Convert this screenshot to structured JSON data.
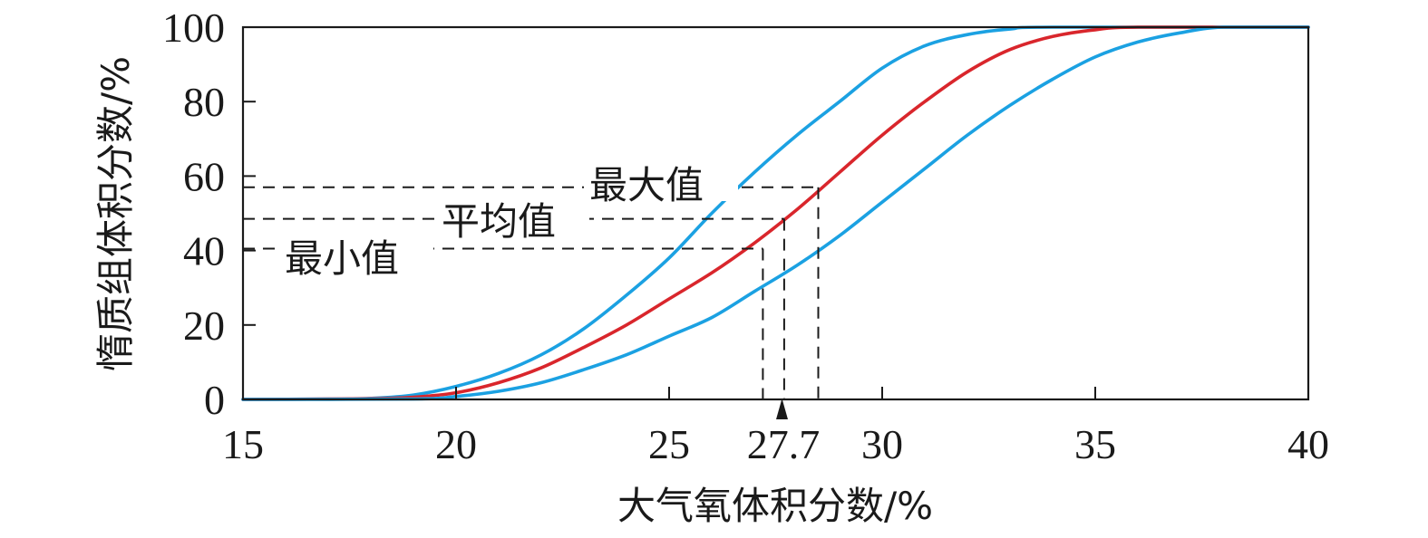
{
  "chart_data": {
    "type": "line",
    "title": "",
    "xlabel": "大气氧体积分数/%",
    "ylabel": "惰质组体积分数/%",
    "xlim": [
      15,
      40
    ],
    "ylim": [
      0,
      100
    ],
    "x_ticks": [
      "15",
      "20",
      "25",
      "30",
      "35",
      "40"
    ],
    "y_ticks": [
      "0",
      "20",
      "40",
      "60",
      "80",
      "100"
    ],
    "grid": false,
    "series": [
      {
        "color": "#1ba1e2",
        "points": [
          [
            15,
            0
          ],
          [
            17,
            0.1
          ],
          [
            18,
            0.3
          ],
          [
            19,
            1.2
          ],
          [
            20,
            3.5
          ],
          [
            21,
            7
          ],
          [
            22,
            12
          ],
          [
            23,
            19
          ],
          [
            24,
            28
          ],
          [
            25,
            38
          ],
          [
            26,
            50
          ],
          [
            27,
            61
          ],
          [
            28,
            71
          ],
          [
            29,
            80
          ],
          [
            30,
            89
          ],
          [
            31,
            95
          ],
          [
            32,
            98
          ],
          [
            33,
            99.5
          ],
          [
            34,
            100
          ],
          [
            40,
            100
          ]
        ]
      },
      {
        "color": "#d9262c",
        "points": [
          [
            15,
            0
          ],
          [
            18,
            0.2
          ],
          [
            19,
            0.6
          ],
          [
            20,
            1.8
          ],
          [
            21,
            4.5
          ],
          [
            22,
            8.5
          ],
          [
            23,
            14
          ],
          [
            24,
            20
          ],
          [
            25,
            27
          ],
          [
            26,
            34
          ],
          [
            27,
            42
          ],
          [
            28,
            51
          ],
          [
            29,
            61
          ],
          [
            30,
            71
          ],
          [
            31,
            80
          ],
          [
            32,
            88
          ],
          [
            33,
            94
          ],
          [
            34,
            97.5
          ],
          [
            35,
            99.3
          ],
          [
            36,
            100
          ],
          [
            40,
            100
          ]
        ]
      },
      {
        "color": "#1ba1e2",
        "points": [
          [
            15,
            0
          ],
          [
            19,
            0.1
          ],
          [
            20,
            0.8
          ],
          [
            21,
            2.2
          ],
          [
            22,
            4.5
          ],
          [
            23,
            8
          ],
          [
            24,
            12
          ],
          [
            25,
            17
          ],
          [
            26,
            22
          ],
          [
            27,
            29
          ],
          [
            28,
            36
          ],
          [
            29,
            44
          ],
          [
            30,
            53
          ],
          [
            31,
            62
          ],
          [
            32,
            71
          ],
          [
            33,
            79
          ],
          [
            34,
            86
          ],
          [
            35,
            92
          ],
          [
            36,
            96
          ],
          [
            37,
            98.5
          ],
          [
            38,
            100
          ],
          [
            40,
            100
          ]
        ]
      }
    ],
    "annotations": [
      {
        "label": "最大值",
        "y": 57,
        "x": 28.5
      },
      {
        "label": "平均值",
        "y": 48.5,
        "x": 27.7
      },
      {
        "label": "最小值",
        "y": 40.5,
        "x": 27.2
      }
    ],
    "highlight": {
      "value": "27.7",
      "x": 27.7
    }
  }
}
